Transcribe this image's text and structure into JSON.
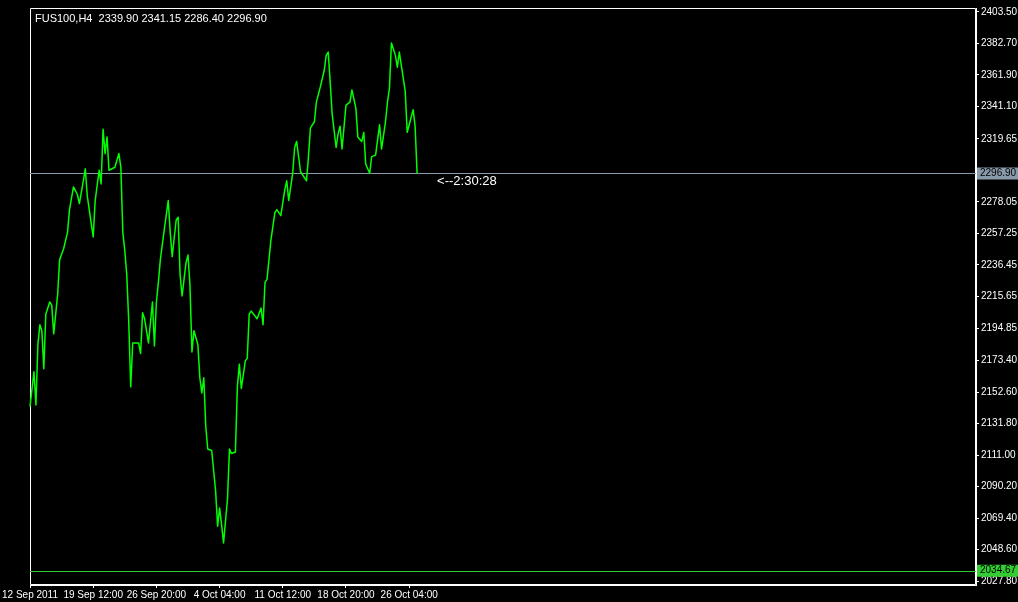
{
  "chart_data": {
    "type": "line",
    "title": "FUS100,H4  2339.90 2341.15 2286.40 2296.90",
    "categories": [
      "12 Sep 2011",
      null,
      null,
      null,
      null,
      null,
      null,
      null,
      null,
      null,
      null,
      null,
      null,
      null,
      null,
      null,
      null,
      null,
      null,
      null,
      null,
      null,
      null,
      null,
      null,
      null,
      null,
      null,
      null,
      null,
      null,
      null,
      "19 Sep 12:00",
      null,
      null,
      null,
      null,
      null,
      null,
      null,
      null,
      null,
      null,
      null,
      null,
      null,
      null,
      null,
      null,
      null,
      null,
      null,
      null,
      null,
      null,
      null,
      null,
      null,
      null,
      null,
      null,
      null,
      null,
      null,
      "26 Sep 20:00",
      null,
      null,
      null,
      null,
      null,
      null,
      null,
      null,
      null,
      null,
      null,
      null,
      null,
      null,
      null,
      null,
      null,
      null,
      null,
      null,
      null,
      null,
      null,
      null,
      null,
      null,
      null,
      null,
      null,
      null,
      null,
      "4 Oct 04:00",
      null,
      null,
      null,
      null,
      null,
      null,
      null,
      null,
      null,
      null,
      null,
      null,
      null,
      null,
      null,
      null,
      null,
      null,
      null,
      null,
      null,
      null,
      null,
      null,
      null,
      null,
      null,
      null,
      null,
      null,
      null,
      "11 Oct 12:00",
      null,
      null,
      null,
      null,
      null,
      null,
      null,
      null,
      null,
      null,
      null,
      null,
      null,
      null,
      null,
      null,
      null,
      null,
      null,
      null,
      null,
      null,
      null,
      null,
      null,
      null,
      null,
      null,
      null,
      null,
      null,
      "18 Oct 20:00",
      null,
      null,
      null,
      null,
      null,
      null,
      null,
      null,
      null,
      null,
      null,
      null,
      null,
      null,
      null,
      null,
      null,
      null,
      null,
      null,
      null,
      null,
      null,
      null,
      null,
      null,
      null,
      null,
      null,
      null,
      null,
      "26 Oct 04:00",
      null,
      null,
      null,
      null,
      null,
      null,
      null,
      null,
      null,
      null,
      null,
      null,
      null,
      null,
      null,
      null,
      null,
      null,
      null,
      null,
      null,
      null,
      null,
      null,
      null,
      null,
      null,
      null,
      null,
      null,
      null,
      null,
      null,
      null,
      null,
      null,
      null,
      null,
      null,
      null,
      null,
      null,
      null,
      null,
      null,
      null,
      null,
      null,
      null,
      null,
      null,
      null,
      null,
      null,
      null,
      null,
      null,
      null,
      null,
      null,
      null,
      null,
      null,
      null,
      null,
      null,
      null,
      null,
      null,
      null,
      null,
      null,
      null,
      null,
      null,
      null,
      null,
      null,
      null,
      null,
      null,
      null,
      null,
      null,
      null,
      null,
      null,
      null,
      null,
      null,
      null,
      null,
      null,
      null,
      null,
      null,
      null,
      null,
      null,
      null,
      null,
      null,
      null,
      null,
      null,
      null,
      null,
      null,
      null,
      null,
      null,
      null,
      null,
      null,
      null,
      null,
      null,
      null,
      null,
      null,
      null,
      null,
      null,
      null,
      null,
      null,
      null,
      null,
      null,
      null,
      null,
      null,
      null,
      null,
      null,
      null,
      null,
      null,
      null,
      null,
      null,
      null,
      null,
      null,
      null,
      null,
      null,
      null,
      null,
      null,
      null,
      null,
      null,
      null,
      null,
      null,
      null,
      null,
      null,
      null,
      null,
      null,
      null,
      null,
      null,
      null,
      null,
      null,
      null,
      null,
      null,
      null,
      null,
      null,
      null,
      null,
      null,
      null,
      null,
      null,
      null,
      null,
      null,
      null,
      null,
      null,
      null,
      null,
      null,
      null,
      null,
      null,
      null,
      null,
      null,
      null,
      null,
      null,
      null,
      null,
      null,
      null,
      null,
      null,
      null,
      null,
      null,
      null,
      null,
      null,
      null,
      null,
      null,
      null,
      null,
      null,
      null,
      null,
      null,
      null,
      null,
      null,
      null,
      null,
      null,
      null,
      null,
      null,
      null,
      null,
      null,
      null,
      null,
      null,
      null,
      null,
      null,
      null,
      null,
      null,
      null,
      null,
      null,
      null,
      null,
      null,
      null,
      null,
      null,
      null,
      null,
      null,
      null,
      null,
      null,
      null,
      null,
      null,
      null,
      null,
      null,
      null,
      null,
      null,
      null,
      null,
      null,
      null,
      null,
      null,
      null,
      null,
      null,
      null,
      null,
      null,
      null,
      null,
      null,
      null,
      null,
      null,
      null,
      null,
      null,
      null,
      null
    ],
    "series": [
      {
        "color": "#00ff00",
        "values": [
          2143,
          null,
          2166,
          2144,
          2184,
          2197,
          2193,
          2168,
          2204,
          null,
          2212,
          2210,
          2191,
          null,
          2217,
          2240,
          null,
          2247,
          null,
          2258,
          2273,
          null,
          2288,
          null,
          2283,
          2277,
          null,
          2292,
          2300,
          2282,
          2273,
          null,
          2255,
          2279,
          null,
          2299,
          2290,
          2326,
          2310,
          2321,
          2299,
          null,
          null,
          2301,
          null,
          2310,
          2301,
          2258,
          2246,
          2230,
          2199,
          2156,
          2185,
          null,
          null,
          2185,
          2178,
          2205,
          2201,
          null,
          2185,
          null,
          2212,
          2183,
          2212,
          2225,
          2240,
          null,
          2260,
          null,
          2279,
          2258,
          2242,
          null,
          2266,
          2268,
          2230,
          2216,
          null,
          2238,
          2243,
          2223,
          2179,
          2193,
          null,
          2184,
          2162,
          2152,
          2162,
          2130,
          2115,
          null,
          2114,
          null,
          2087,
          2064,
          2076,
          2065,
          2053,
          null,
          2082,
          2115,
          2112,
          null,
          2113,
          2156,
          2171,
          2155,
          null,
          2173,
          2175,
          2204,
          2206,
          null,
          null,
          2201,
          null,
          2208,
          2197,
          2225,
          2227,
          null,
          2253,
          null,
          2271,
          2273,
          null,
          2269,
          null,
          2286,
          2292,
          2279,
          null,
          2297,
          2314,
          2318,
          null,
          2298,
          null,
          null,
          2292,
          2308,
          2327,
          null,
          2331,
          2344,
          null,
          2354,
          null,
          2365,
          2375,
          2377,
          2357,
          2336,
          null,
          2314,
          2323,
          2328,
          2313,
          null,
          2342,
          null,
          2344,
          2352,
          null,
          2340,
          2321,
          null,
          2318,
          2324,
          2303,
          null,
          2297,
          2308,
          null,
          2309,
          null,
          2329,
          2313,
          null,
          2331,
          2344,
          2353,
          2383,
          null,
          2375,
          2367,
          2377,
          null,
          null,
          2351,
          2324,
          2329,
          null,
          2339,
          2328,
          2296.9,
          null,
          null,
          null,
          null,
          null,
          null,
          null,
          null,
          null,
          null,
          null,
          null,
          null,
          null,
          null,
          null,
          null,
          null,
          null,
          null,
          null,
          null,
          null,
          null,
          null,
          null,
          null,
          null,
          null,
          null,
          null,
          null,
          null,
          null,
          null,
          null,
          null,
          null,
          null,
          null,
          null,
          null,
          null,
          null,
          null,
          null,
          null,
          null,
          null,
          null,
          null,
          null,
          null,
          null,
          null,
          null,
          null,
          null,
          null,
          null,
          null,
          null,
          null,
          null,
          null,
          null,
          null,
          null,
          null,
          null,
          null,
          null,
          null,
          null,
          null,
          null,
          null,
          null,
          null,
          null,
          null,
          null,
          null,
          null,
          null,
          null,
          null,
          null,
          null,
          null,
          null,
          null,
          null,
          null,
          null,
          null,
          null,
          null,
          null,
          null,
          null,
          null,
          null,
          null,
          null,
          null,
          null,
          null,
          null,
          null,
          null,
          null,
          null,
          null,
          null,
          null,
          null,
          null,
          null,
          null,
          null,
          null,
          null,
          null,
          null,
          null,
          null,
          null,
          null,
          null,
          null,
          null,
          null,
          null,
          null,
          null,
          null,
          null,
          null,
          null,
          null,
          null,
          null,
          null,
          null,
          null,
          null,
          null,
          null,
          null,
          null,
          null,
          null,
          null,
          null,
          null,
          null,
          null,
          null,
          null,
          null,
          null,
          null,
          null,
          null,
          null,
          null,
          null,
          null,
          null,
          null,
          null,
          null,
          null,
          null,
          null,
          null,
          null,
          null,
          null,
          null,
          null,
          null,
          null,
          null,
          null,
          null,
          null,
          null,
          null,
          null,
          null,
          null,
          null,
          null,
          null,
          null,
          null,
          null,
          null,
          null,
          null,
          null,
          null,
          null,
          null,
          null,
          null,
          null,
          null,
          null,
          null,
          null,
          null,
          null,
          null,
          null,
          null,
          null,
          null,
          null,
          null,
          null,
          null,
          null,
          null,
          null,
          null,
          null,
          null,
          null,
          null,
          null,
          null,
          null,
          null,
          null,
          null,
          null,
          null,
          null,
          null,
          null,
          null,
          null,
          null,
          null,
          null,
          null,
          null,
          null,
          null,
          null,
          null,
          null,
          null,
          null,
          null,
          null,
          null,
          null,
          null,
          null,
          null,
          null,
          null,
          null,
          null,
          null,
          null,
          null,
          null,
          null,
          null,
          null,
          null,
          null,
          null,
          null,
          null,
          null,
          null,
          null
        ]
      }
    ],
    "ylim": [
      2025.2,
      2406.1
    ],
    "yticks": [
      {
        "value": 2403.5,
        "label": "2403.50"
      },
      {
        "value": 2382.7,
        "label": "2382.70"
      },
      {
        "value": 2361.9,
        "label": "2361.90"
      },
      {
        "value": 2341.1,
        "label": "2341.10"
      },
      {
        "value": 2319.65,
        "label": "2319.65"
      },
      {
        "value": 2278.05,
        "label": "2278.05"
      },
      {
        "value": 2257.25,
        "label": "2257.25"
      },
      {
        "value": 2236.45,
        "label": "2236.45"
      },
      {
        "value": 2215.65,
        "label": "2215.65"
      },
      {
        "value": 2194.85,
        "label": "2194.85"
      },
      {
        "value": 2173.4,
        "label": "2173.40"
      },
      {
        "value": 2152.6,
        "label": "2152.60"
      },
      {
        "value": 2131.8,
        "label": "2131.80"
      },
      {
        "value": 2111,
        "label": "2111.00"
      },
      {
        "value": 2090.2,
        "label": "2090.20"
      },
      {
        "value": 2069.4,
        "label": "2069.40"
      },
      {
        "value": 2048.6,
        "label": "2048.60"
      },
      {
        "value": 2027.8,
        "label": "2027.80"
      }
    ],
    "ref_lines": [
      {
        "axis": "y",
        "value": 2296.9,
        "label": "2296.90",
        "color": "#8899aa"
      },
      {
        "axis": "y",
        "value": 2034.67,
        "label": "2034.67",
        "color": "#33cc33"
      }
    ],
    "annotations": [
      {
        "text": "<--2:30:28",
        "y": 2296.9
      }
    ],
    "grid": false,
    "legend": false,
    "marker": "none",
    "line_style": "solid"
  }
}
